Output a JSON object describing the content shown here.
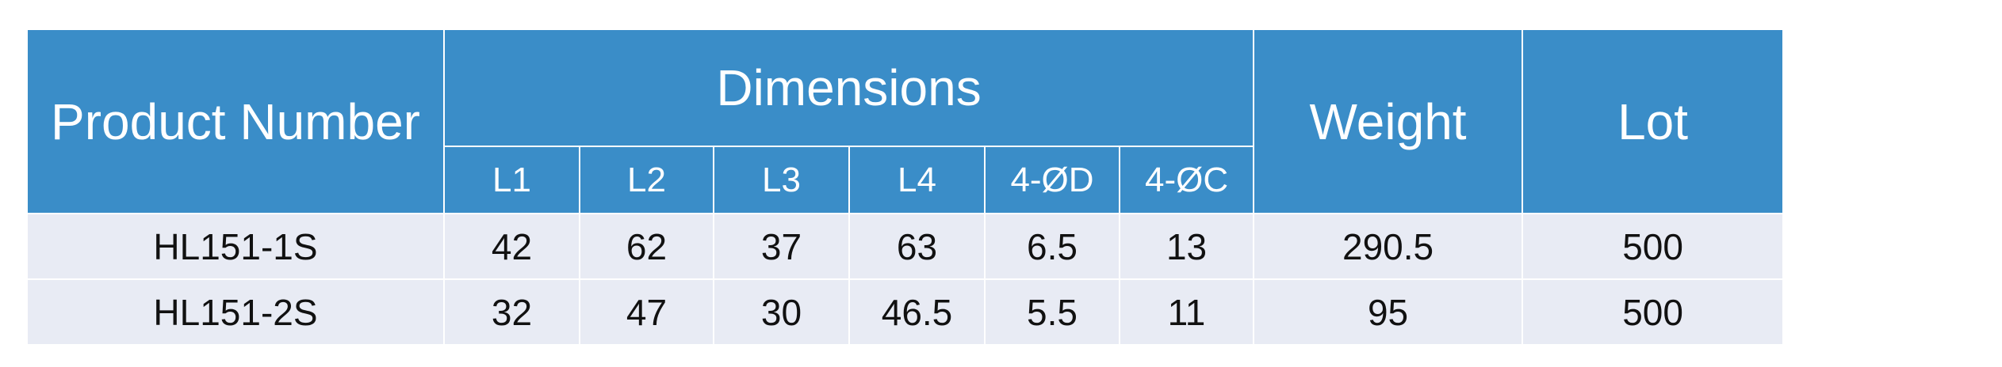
{
  "table": {
    "header": {
      "product_number": "Product Number",
      "dimensions": "Dimensions",
      "weight": "Weight",
      "lot": "Lot",
      "sub": [
        "L1",
        "L2",
        "L3",
        "L4",
        "4-ØD",
        "4-ØC"
      ]
    },
    "rows": [
      [
        "HL151-1S",
        42,
        62,
        37,
        63,
        6.5,
        13,
        290.5,
        500
      ],
      [
        "HL151-2S",
        32,
        47,
        30,
        46.5,
        5.5,
        11,
        95,
        500
      ]
    ]
  }
}
